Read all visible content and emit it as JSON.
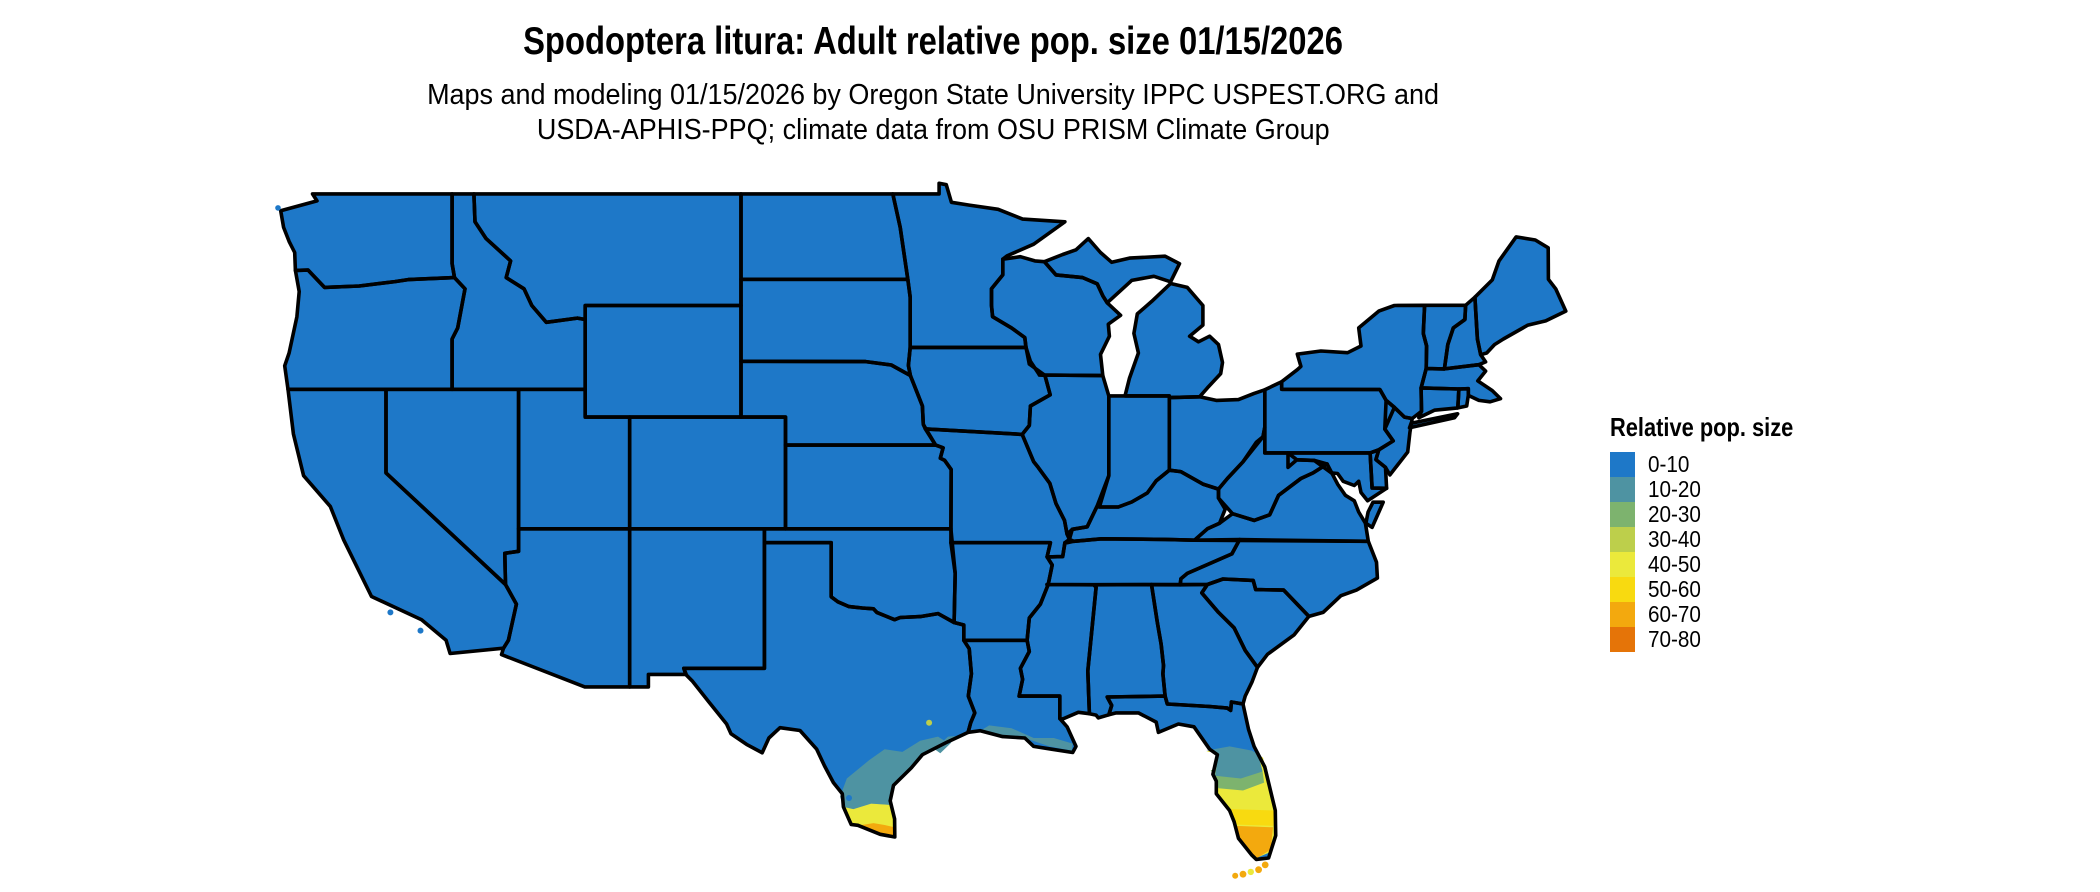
{
  "header": {
    "title": "Spodoptera litura: Adult relative pop. size 01/15/2026",
    "subtitle_line1": "Maps and modeling 01/15/2026 by Oregon State University IPPC USPEST.ORG and",
    "subtitle_line2": "USDA-APHIS-PPQ; climate data from OSU PRISM Climate Group"
  },
  "legend": {
    "title": "Relative pop. size",
    "items": [
      {
        "label": "0-10",
        "color": "#1e78c8"
      },
      {
        "label": "10-20",
        "color": "#4e93a2"
      },
      {
        "label": "20-30",
        "color": "#7db36e"
      },
      {
        "label": "30-40",
        "color": "#bdcf4b"
      },
      {
        "label": "40-50",
        "color": "#ebe93b"
      },
      {
        "label": "50-60",
        "color": "#f8da10"
      },
      {
        "label": "60-70",
        "color": "#f3a90e"
      },
      {
        "label": "70-80",
        "color": "#e57408"
      }
    ]
  },
  "map": {
    "land_value_class": "0-10",
    "land_color": "#1e78c8",
    "state_border_color": "#000000",
    "background_color": "#ffffff"
  }
}
